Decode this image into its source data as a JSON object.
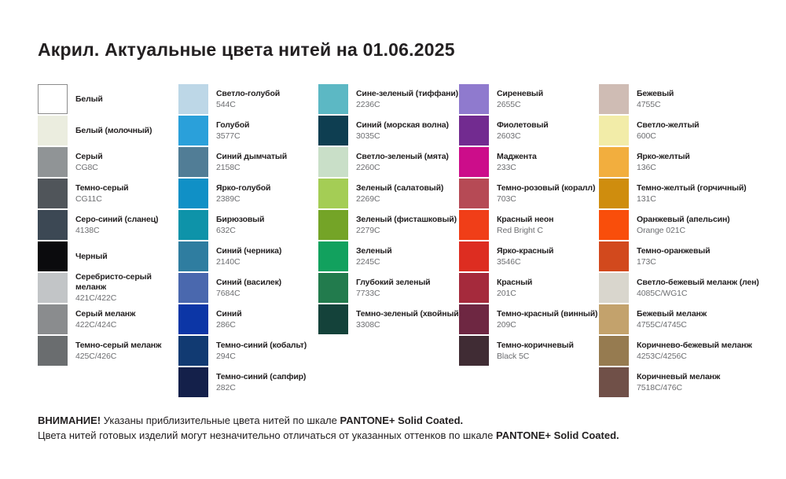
{
  "title": "Акрил. Актуальные цвета нитей на 01.06.2025",
  "columns": [
    {
      "group": "whites-grays-blacks",
      "items": [
        {
          "name": "Белый",
          "code": "",
          "hex": "#FFFFFF",
          "bordered": true
        },
        {
          "name": "Белый (молочный)",
          "code": "",
          "hex": "#EBEDDF",
          "bordered": false
        },
        {
          "name": "Серый",
          "code": "CG8C",
          "hex": "#909496",
          "bordered": false
        },
        {
          "name": "Темно-серый",
          "code": "CG11C",
          "hex": "#50555A",
          "bordered": false
        },
        {
          "name": "Серо-синий (сланец)",
          "code": "4138C",
          "hex": "#3C4854",
          "bordered": false
        },
        {
          "name": "Черный",
          "code": "",
          "hex": "#0B0B0D",
          "bordered": false
        },
        {
          "name": "Серебристо-серый меланж",
          "code": "421C/422C",
          "hex": "#C2C5C7",
          "bordered": false
        },
        {
          "name": "Серый меланж",
          "code": "422C/424C",
          "hex": "#8A8C8E",
          "bordered": false
        },
        {
          "name": "Темно-серый меланж",
          "code": "425C/426C",
          "hex": "#6A6D6F",
          "bordered": false
        }
      ]
    },
    {
      "group": "blues",
      "items": [
        {
          "name": "Светло-голубой",
          "code": "544C",
          "hex": "#BDD7E7",
          "bordered": false
        },
        {
          "name": "Голубой",
          "code": "3577C",
          "hex": "#2AA0DA",
          "bordered": false
        },
        {
          "name": "Синий дымчатый",
          "code": "2158C",
          "hex": "#517D96",
          "bordered": false
        },
        {
          "name": "Ярко-голубой",
          "code": "2389C",
          "hex": "#1090C6",
          "bordered": false
        },
        {
          "name": "Бирюзовый",
          "code": "632C",
          "hex": "#0E93A9",
          "bordered": false
        },
        {
          "name": "Синий (черника)",
          "code": "2140C",
          "hex": "#2F7DA0",
          "bordered": false
        },
        {
          "name": "Синий (василек)",
          "code": "7684C",
          "hex": "#4A68AE",
          "bordered": false
        },
        {
          "name": "Синий",
          "code": "286C",
          "hex": "#0C36A6",
          "bordered": false
        },
        {
          "name": "Темно-синий (кобальт)",
          "code": "294C",
          "hex": "#113A72",
          "bordered": false
        },
        {
          "name": "Темно-синий (сапфир)",
          "code": "282C",
          "hex": "#14204A",
          "bordered": false
        }
      ]
    },
    {
      "group": "greens",
      "items": [
        {
          "name": "Сине-зеленый (тиффани)",
          "code": "2236C",
          "hex": "#5CB8C4",
          "bordered": false
        },
        {
          "name": "Синий (морская волна)",
          "code": "3035C",
          "hex": "#0E3E51",
          "bordered": false
        },
        {
          "name": "Светло-зеленый (мята)",
          "code": "2260C",
          "hex": "#C9DFC8",
          "bordered": false
        },
        {
          "name": "Зеленый (салатовый)",
          "code": "2269C",
          "hex": "#A4CD55",
          "bordered": false
        },
        {
          "name": "Зеленый (фисташковый)",
          "code": "2279C",
          "hex": "#74A427",
          "bordered": false
        },
        {
          "name": "Зеленый",
          "code": "2245C",
          "hex": "#12A15E",
          "bordered": false
        },
        {
          "name": "Глубокий зеленый",
          "code": "7733C",
          "hex": "#227B4D",
          "bordered": false
        },
        {
          "name": "Темно-зеленый (хвойный)",
          "code": "3308C",
          "hex": "#14423A",
          "bordered": false
        }
      ]
    },
    {
      "group": "purples-reds",
      "items": [
        {
          "name": "Сиреневый",
          "code": "2655C",
          "hex": "#8F7ACE",
          "bordered": false
        },
        {
          "name": "Фиолетовый",
          "code": "2603C",
          "hex": "#722B90",
          "bordered": false
        },
        {
          "name": "Маджента",
          "code": "233C",
          "hex": "#CC0D8A",
          "bordered": false
        },
        {
          "name": "Темно-розовый (коралл)",
          "code": "703C",
          "hex": "#B64A55",
          "bordered": false
        },
        {
          "name": "Красный неон",
          "code": "Red Bright C",
          "hex": "#F03E18",
          "bordered": false
        },
        {
          "name": "Ярко-красный",
          "code": "3546C",
          "hex": "#DD2D21",
          "bordered": false
        },
        {
          "name": "Красный",
          "code": "201C",
          "hex": "#A52A3C",
          "bordered": false
        },
        {
          "name": "Темно-красный (винный)",
          "code": "209C",
          "hex": "#6E2742",
          "bordered": false
        },
        {
          "name": "Темно-коричневый",
          "code": "Black 5C",
          "hex": "#402C34",
          "bordered": false
        }
      ]
    },
    {
      "group": "yellows-oranges-browns",
      "items": [
        {
          "name": "Бежевый",
          "code": "4755C",
          "hex": "#CFBCB4",
          "bordered": false
        },
        {
          "name": "Светло-желтый",
          "code": "600C",
          "hex": "#F2ECA8",
          "bordered": false
        },
        {
          "name": "Ярко-желтый",
          "code": "136C",
          "hex": "#F2AE3E",
          "bordered": false
        },
        {
          "name": "Темно-желтый (горчичный)",
          "code": "131C",
          "hex": "#CF8D0E",
          "bordered": false
        },
        {
          "name": "Оранжевый (апельсин)",
          "code": "Orange 021C",
          "hex": "#F94E0B",
          "bordered": false
        },
        {
          "name": "Темно-оранжевый",
          "code": "173C",
          "hex": "#D2491D",
          "bordered": false
        },
        {
          "name": "Светло-бежевый меланж (лен)",
          "code": "4085C/WG1C",
          "hex": "#D9D6CD",
          "bordered": false
        },
        {
          "name": "Бежевый меланж",
          "code": "4755C/4745C",
          "hex": "#C3A26C",
          "bordered": false
        },
        {
          "name": "Коричнево-бежевый меланж",
          "code": "4253C/4256C",
          "hex": "#967B50",
          "bordered": false
        },
        {
          "name": "Коричневый меланж",
          "code": "7518C/476C",
          "hex": "#705048",
          "bordered": false
        }
      ]
    }
  ],
  "footer": {
    "warning_label": "ВНИМАНИЕ!",
    "line1_text": " Указаны приблизительные цвета нитей по шкале ",
    "line1_bold": "PANTONE+ Solid Coated.",
    "line2_text": "Цвета нитей готовых изделий могут незначительно отличаться от указанных оттенков по шкале ",
    "line2_bold": "PANTONE+ Solid Coated."
  }
}
